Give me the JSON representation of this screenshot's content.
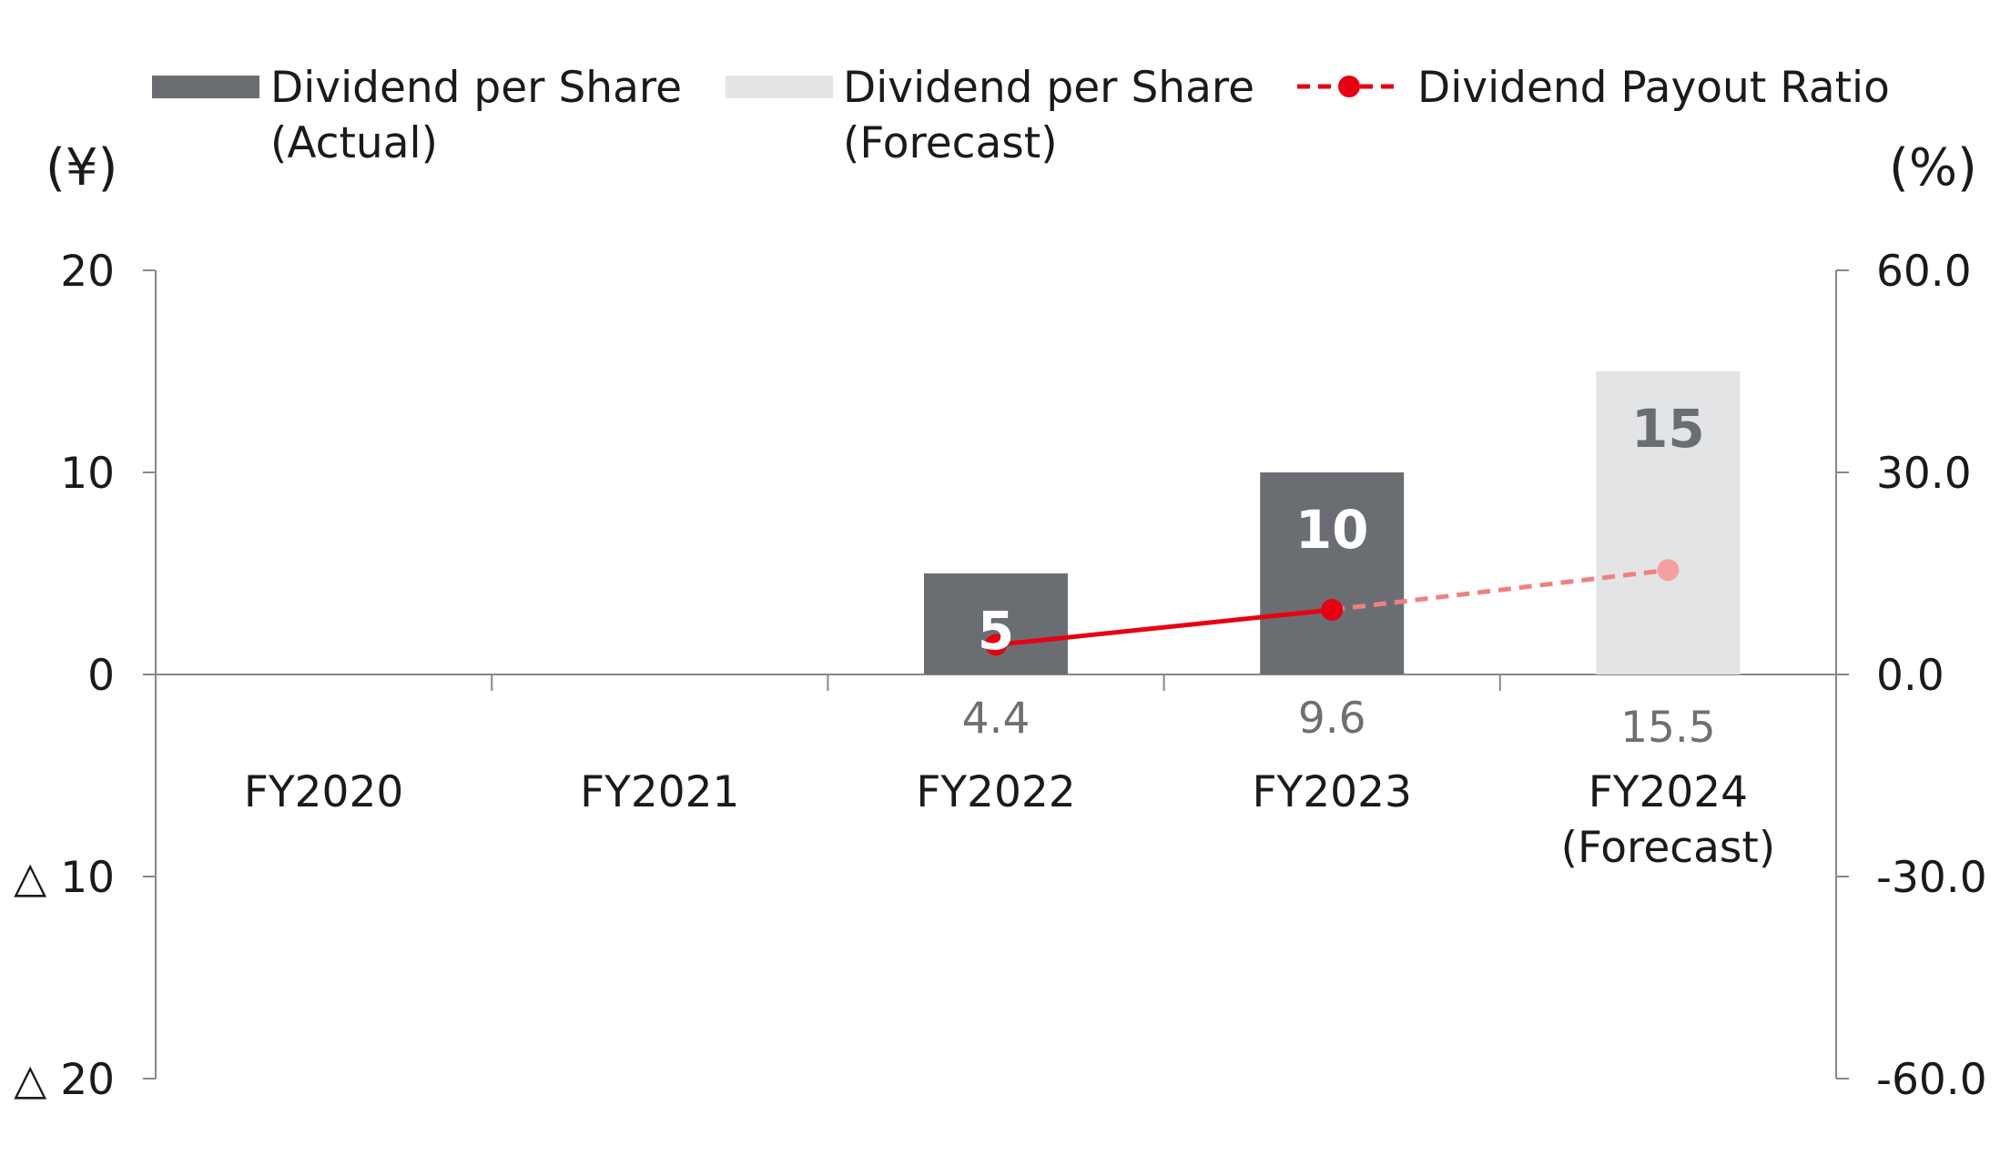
{
  "colors": {
    "actual_bar": "#6a6e72",
    "forecast_bar": "#e3e4e6",
    "ratio_line_actual": "#e60012",
    "ratio_line_forecast": "#f08080",
    "ratio_point_forecast": "#f4a0a0",
    "axis": "#888888",
    "actual_label": "#ffffff",
    "forecast_label": "#6a6e72"
  },
  "legend": {
    "actual": {
      "line1": "Dividend per Share",
      "line2": "(Actual)"
    },
    "forecast": {
      "line1": "Dividend per Share",
      "line2": "(Forecast)"
    },
    "ratio": {
      "label": "Dividend Payout Ratio"
    }
  },
  "chart_data": {
    "type": "bar",
    "categories": [
      [
        "FY2020"
      ],
      [
        "FY2021"
      ],
      [
        "FY2022"
      ],
      [
        "FY2023"
      ],
      [
        "FY2024",
        "(Forecast)"
      ]
    ],
    "left_axis": {
      "unit": "(¥)",
      "range": [
        -20,
        20
      ],
      "ticks": [
        20,
        10,
        0,
        -10,
        -20
      ],
      "tick_labels": [
        "20",
        "10",
        "0",
        "△ 10",
        "△ 20"
      ]
    },
    "right_axis": {
      "unit": "(%)",
      "range": [
        -60,
        60
      ],
      "ticks": [
        60,
        30,
        0,
        -30,
        -60
      ],
      "tick_labels": [
        "60.0",
        "30.0",
        "0.0",
        "-30.0",
        "-60.0"
      ]
    },
    "series": [
      {
        "name": "Dividend per Share (Actual)",
        "axis": "left",
        "type": "bar",
        "values": [
          null,
          null,
          5,
          10,
          null
        ],
        "labels": [
          "",
          "",
          "5",
          "10",
          ""
        ]
      },
      {
        "name": "Dividend per Share (Forecast)",
        "axis": "left",
        "type": "bar",
        "values": [
          null,
          null,
          null,
          null,
          15
        ],
        "labels": [
          "",
          "",
          "",
          "",
          "15"
        ]
      },
      {
        "name": "Dividend Payout Ratio",
        "axis": "right",
        "type": "line",
        "values": [
          null,
          null,
          4.4,
          9.6,
          15.5
        ],
        "labels": [
          "",
          "",
          "4.4",
          "9.6",
          "15.5"
        ],
        "forecast_from_index": 3
      }
    ],
    "grid": false,
    "legend_position": "top"
  }
}
